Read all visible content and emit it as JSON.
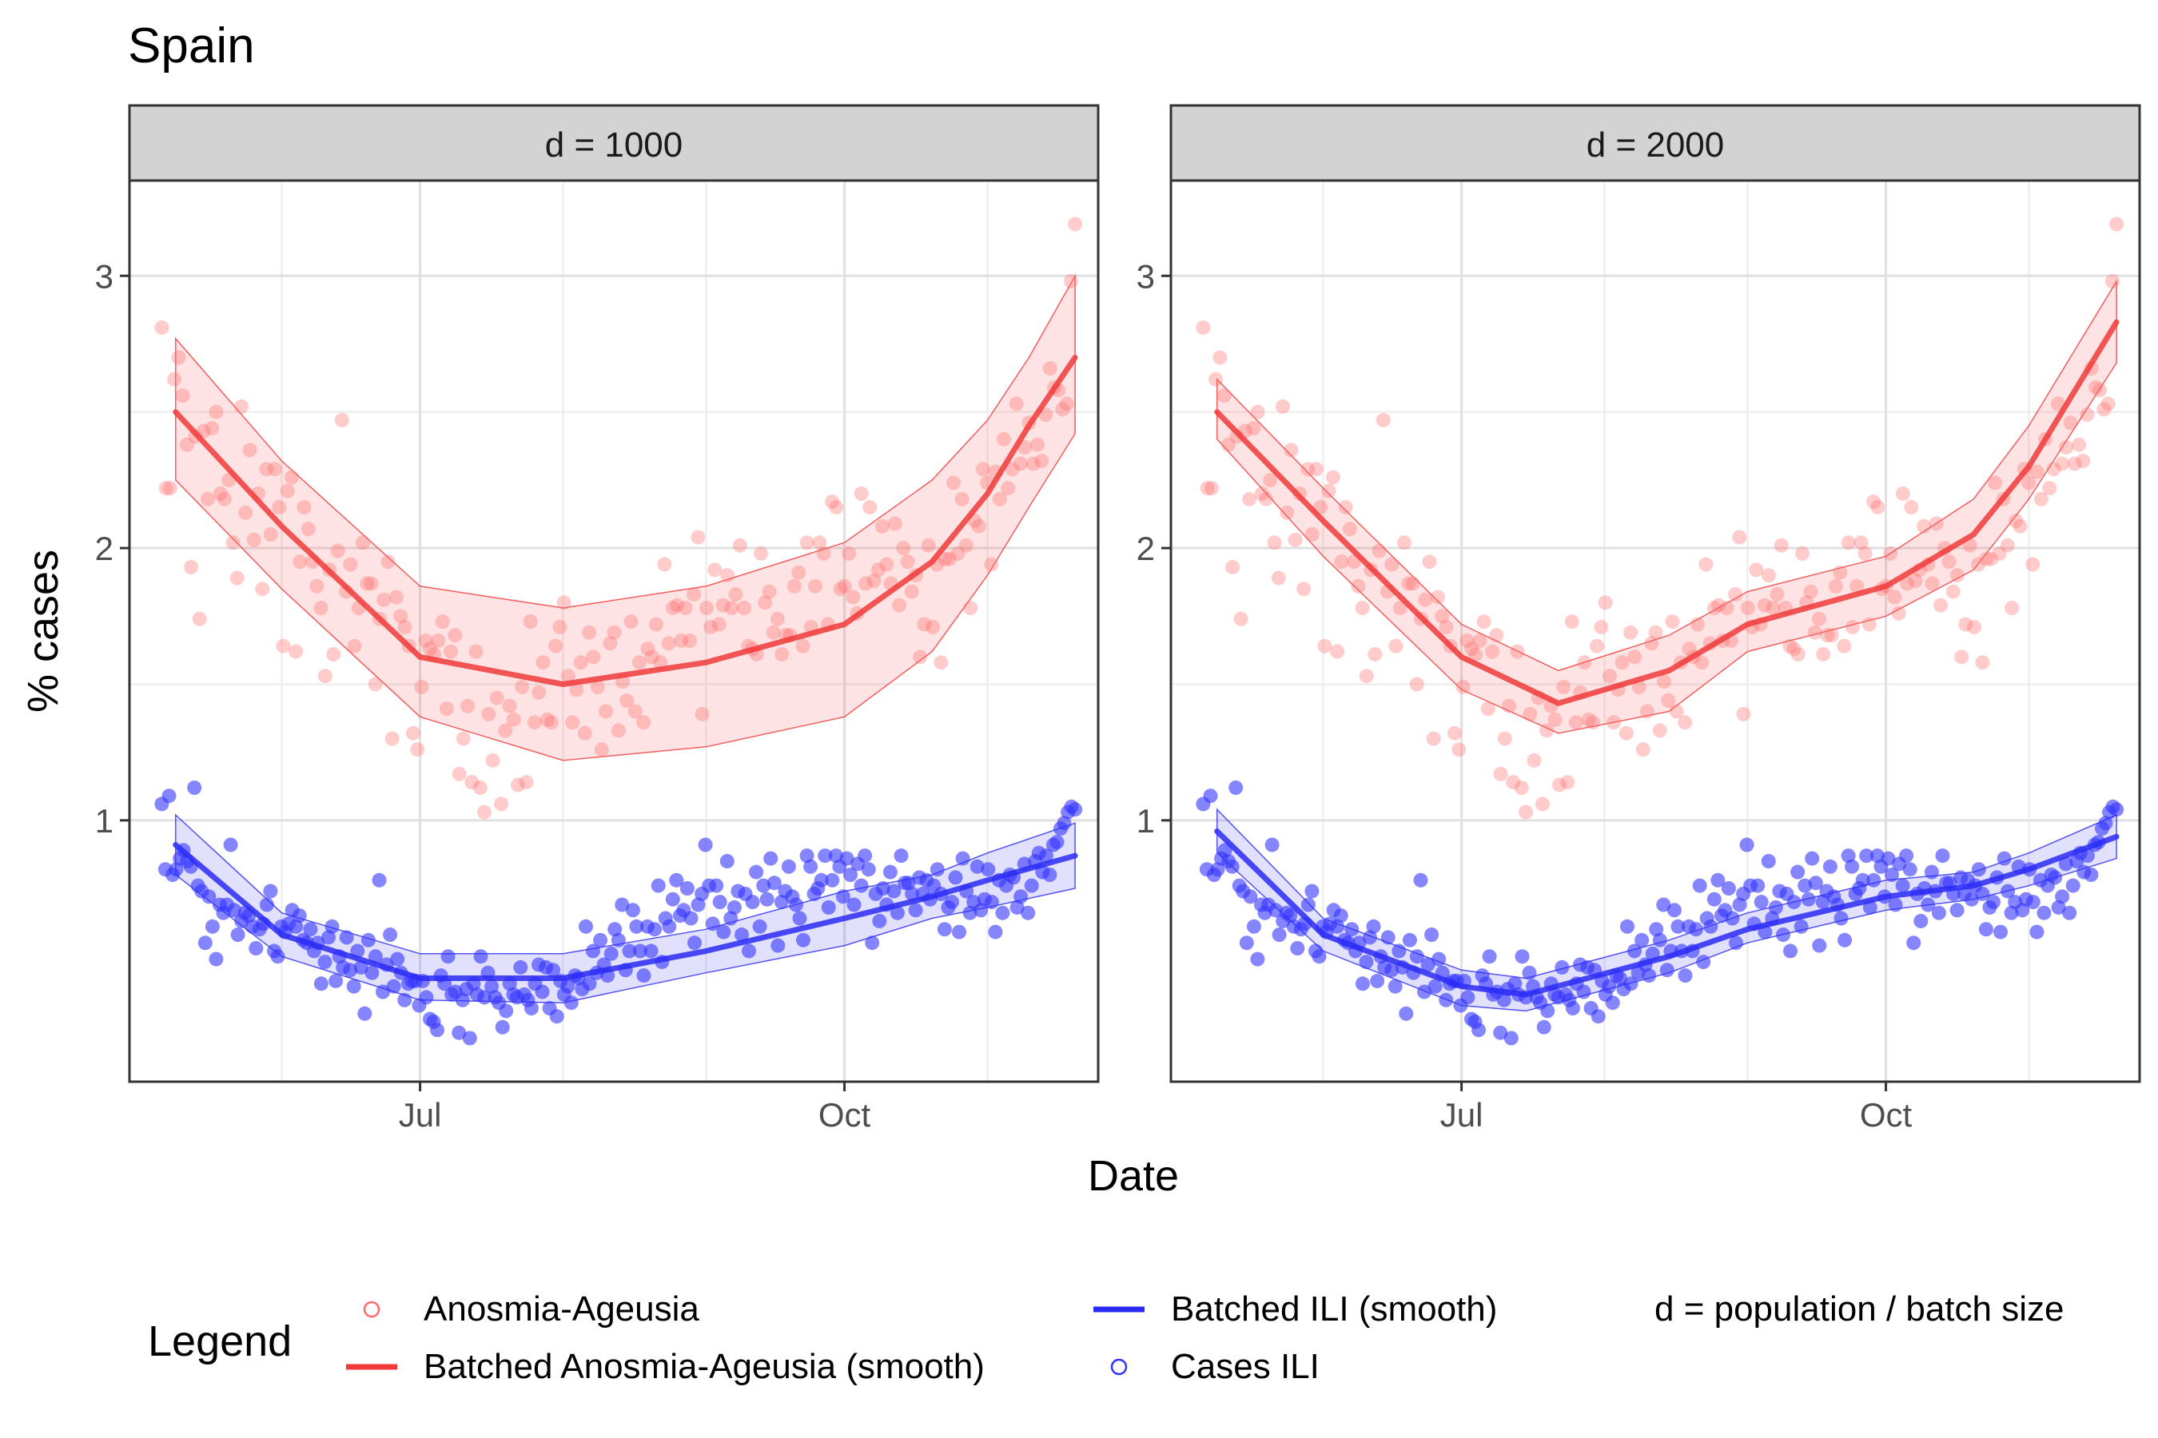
{
  "title": "Spain",
  "xlabel": "Date",
  "ylabel": "% cases",
  "legend": {
    "title": "Legend",
    "items": [
      {
        "label": "Anosmia-Ageusia",
        "kind": "point",
        "color": "#ff6b6b"
      },
      {
        "label": "Batched Anosmia-Ageusia (smooth)",
        "kind": "line",
        "color": "#f03a3a"
      },
      {
        "label": "Batched ILI (smooth)",
        "kind": "line",
        "color": "#2a2af5"
      },
      {
        "label": "Cases ILI",
        "kind": "point",
        "color": "#3333ff"
      }
    ],
    "note": "d = population / batch size"
  },
  "chart_data": {
    "type": "scatter",
    "x_type": "date",
    "x_range": [
      "2020-04-29",
      "2020-11-25"
    ],
    "x_ticks": [
      {
        "date": "2020-07-01",
        "label": "Jul"
      },
      {
        "date": "2020-10-01",
        "label": "Oct"
      }
    ],
    "x_minor_ticks": [
      "2020-06-01",
      "2020-08-01",
      "2020-09-01",
      "2020-11-01"
    ],
    "ylim": [
      0.04,
      3.35
    ],
    "y_ticks": [
      1,
      2,
      3
    ],
    "y_minor_ticks": [
      1.5,
      2.5
    ],
    "grid": true,
    "legend_position": "bottom",
    "colors": {
      "anosmia_points": "#ff6b6b",
      "anosmia_smooth": "#f03a3a",
      "ili_points": "#3333ff",
      "ili_smooth": "#2a2af5"
    },
    "observed": {
      "date_start": "2020-05-06",
      "date_end": "2020-11-20",
      "anosmia_ageusia": [
        2.81,
        2.22,
        2.22,
        2.62,
        2.7,
        2.56,
        2.38,
        1.93,
        2.41,
        1.74,
        2.43,
        2.18,
        2.44,
        2.5,
        2.2,
        2.18,
        2.25,
        2.02,
        1.89,
        2.52,
        2.13,
        2.36,
        2.03,
        2.2,
        1.85,
        2.29,
        2.05,
        2.29,
        2.15,
        1.64,
        2.21,
        2.26,
        1.62,
        1.95,
        2.15,
        2.07,
        1.95,
        1.86,
        1.78,
        1.53,
        1.92,
        1.61,
        1.99,
        2.47,
        1.84,
        1.94,
        1.64,
        1.78,
        2.02,
        1.87,
        1.87,
        1.5,
        1.74,
        1.81,
        1.95,
        1.3,
        1.82,
        1.75,
        1.71,
        1.64,
        1.32,
        1.26,
        1.49,
        1.66,
        1.63,
        1.61,
        1.66,
        1.73,
        1.41,
        1.62,
        1.68,
        1.17,
        1.3,
        1.42,
        1.14,
        1.62,
        1.12,
        1.03,
        1.39,
        1.22,
        1.45,
        1.06,
        1.33,
        1.42,
        1.37,
        1.13,
        1.49,
        1.14,
        1.73,
        1.36,
        1.47,
        1.58,
        1.37,
        1.36,
        1.64,
        1.71,
        1.8,
        1.53,
        1.36,
        1.48,
        1.58,
        1.32,
        1.69,
        1.6,
        1.49,
        1.26,
        1.4,
        1.65,
        1.69,
        1.33,
        1.51,
        1.44,
        1.73,
        1.4,
        1.58,
        1.36,
        1.63,
        1.6,
        1.72,
        1.58,
        1.94,
        1.65,
        1.78,
        1.79,
        1.66,
        1.78,
        1.66,
        1.83,
        2.04,
        1.39,
        1.78,
        1.71,
        1.92,
        1.72,
        1.79,
        1.9,
        1.78,
        1.83,
        2.01,
        1.78,
        1.64,
        1.63,
        1.61,
        1.98,
        1.8,
        1.84,
        1.69,
        1.74,
        1.61,
        1.68,
        1.68,
        1.86,
        1.91,
        1.64,
        2.02,
        1.71,
        1.86,
        2.02,
        1.98,
        1.72,
        2.17,
        2.15,
        1.85,
        1.86,
        1.98,
        1.82,
        1.76,
        2.2,
        1.87,
        2.15,
        1.88,
        1.92,
        2.08,
        1.94,
        1.87,
        2.09,
        1.79,
        2.0,
        1.95,
        1.84,
        1.9,
        1.6,
        1.72,
        2.01,
        1.71,
        1.94,
        1.58,
        1.96,
        1.96,
        2.24,
        1.98,
        2.18,
        2.01,
        1.78,
        2.1,
        2.08,
        2.29,
        2.24,
        1.94,
        2.28,
        2.18,
        2.4,
        2.22,
        2.29,
        2.53,
        2.31,
        2.37,
        2.46,
        2.31,
        2.38,
        2.32,
        2.49,
        2.66,
        2.59,
        2.58,
        2.51,
        2.53,
        2.98,
        3.19
      ],
      "cases_ili": [
        1.06,
        0.82,
        1.09,
        0.8,
        0.82,
        0.86,
        0.89,
        0.85,
        0.83,
        1.12,
        0.76,
        0.74,
        0.55,
        0.72,
        0.61,
        0.49,
        0.69,
        0.66,
        0.69,
        0.91,
        0.67,
        0.58,
        0.63,
        0.66,
        0.65,
        0.61,
        0.53,
        0.6,
        0.62,
        0.69,
        0.74,
        0.52,
        0.5,
        0.61,
        0.59,
        0.62,
        0.67,
        0.61,
        0.65,
        0.56,
        0.55,
        0.6,
        0.52,
        0.55,
        0.4,
        0.48,
        0.57,
        0.61,
        0.41,
        0.5,
        0.46,
        0.57,
        0.45,
        0.39,
        0.52,
        0.46,
        0.29,
        0.56,
        0.44,
        0.5,
        0.78,
        0.37,
        0.47,
        0.58,
        0.39,
        0.49,
        0.44,
        0.34,
        0.4,
        0.41,
        0.41,
        0.32,
        0.41,
        0.35,
        0.27,
        0.26,
        0.23,
        0.43,
        0.4,
        0.5,
        0.36,
        0.37,
        0.22,
        0.34,
        0.38,
        0.2,
        0.4,
        0.36,
        0.5,
        0.35,
        0.44,
        0.39,
        0.35,
        0.33,
        0.24,
        0.3,
        0.4,
        0.36,
        0.35,
        0.46,
        0.36,
        0.34,
        0.31,
        0.4,
        0.47,
        0.37,
        0.46,
        0.31,
        0.45,
        0.28,
        0.41,
        0.36,
        0.39,
        0.33,
        0.43,
        0.42,
        0.38,
        0.61,
        0.4,
        0.52,
        0.44,
        0.56,
        0.47,
        0.43,
        0.51,
        0.6,
        0.56,
        0.69,
        0.45,
        0.52,
        0.67,
        0.61,
        0.52,
        0.43,
        0.61,
        0.52,
        0.6,
        0.76,
        0.48,
        0.64,
        0.61,
        0.71,
        0.78,
        0.65,
        0.67,
        0.75,
        0.64,
        0.55,
        0.69,
        0.73,
        0.91,
        0.76,
        0.62,
        0.76,
        0.7,
        0.59,
        0.85,
        0.64,
        0.68,
        0.74,
        0.58,
        0.73,
        0.52,
        0.7,
        0.81,
        0.61,
        0.76,
        0.71,
        0.86,
        0.77,
        0.54,
        0.7,
        0.74,
        0.83,
        0.72,
        0.69,
        0.64,
        0.56,
        0.87,
        0.83,
        0.73,
        0.75,
        0.78,
        0.87,
        0.68,
        0.78,
        0.87,
        0.83,
        0.72,
        0.86,
        0.8,
        0.69,
        0.84,
        0.76,
        0.87,
        0.82,
        0.55,
        0.73,
        0.63,
        0.75,
        0.69,
        0.81,
        0.74,
        0.66,
        0.87,
        0.77,
        0.77,
        0.73,
        0.67,
        0.79,
        0.73,
        0.78,
        0.71,
        0.76,
        0.82,
        0.73,
        0.6,
        0.68,
        0.7,
        0.79,
        0.59,
        0.86,
        0.74,
        0.66,
        0.7,
        0.83,
        0.67,
        0.71,
        0.82,
        0.7,
        0.59,
        0.78,
        0.66,
        0.76,
        0.8,
        0.79,
        0.68,
        0.72,
        0.84,
        0.66,
        0.76,
        0.85,
        0.88,
        0.81,
        0.87,
        0.8,
        0.91,
        0.92,
        0.97,
        0.99,
        1.03,
        1.05,
        1.04
      ]
    },
    "panels": [
      {
        "strip": "d = 1000",
        "anosmia_smooth": {
          "dates": [
            "2020-05-09",
            "2020-06-01",
            "2020-07-01",
            "2020-08-01",
            "2020-09-01",
            "2020-10-01",
            "2020-10-20",
            "2020-11-01",
            "2020-11-10",
            "2020-11-20"
          ],
          "fit": [
            2.5,
            2.08,
            1.6,
            1.5,
            1.58,
            1.72,
            1.95,
            2.2,
            2.45,
            2.7
          ],
          "lower": [
            2.25,
            1.85,
            1.38,
            1.22,
            1.27,
            1.38,
            1.62,
            1.9,
            2.15,
            2.42
          ],
          "upper": [
            2.77,
            2.32,
            1.86,
            1.78,
            1.86,
            2.02,
            2.25,
            2.47,
            2.7,
            3.0
          ]
        },
        "ili_smooth": {
          "dates": [
            "2020-05-09",
            "2020-06-01",
            "2020-07-01",
            "2020-08-01",
            "2020-09-01",
            "2020-10-01",
            "2020-10-20",
            "2020-11-01",
            "2020-11-20"
          ],
          "fit": [
            0.91,
            0.58,
            0.42,
            0.42,
            0.52,
            0.64,
            0.72,
            0.78,
            0.87
          ],
          "lower": [
            0.8,
            0.5,
            0.34,
            0.33,
            0.44,
            0.54,
            0.64,
            0.68,
            0.75
          ],
          "upper": [
            1.02,
            0.66,
            0.51,
            0.51,
            0.6,
            0.74,
            0.8,
            0.88,
            0.99
          ]
        }
      },
      {
        "strip": "d = 2000",
        "anosmia_smooth": {
          "dates": [
            "2020-05-09",
            "2020-06-01",
            "2020-07-01",
            "2020-07-22",
            "2020-08-15",
            "2020-09-01",
            "2020-10-01",
            "2020-10-20",
            "2020-11-01",
            "2020-11-20"
          ],
          "fit": [
            2.5,
            2.1,
            1.6,
            1.43,
            1.55,
            1.72,
            1.86,
            2.05,
            2.3,
            2.83
          ],
          "lower": [
            2.4,
            1.97,
            1.48,
            1.32,
            1.4,
            1.62,
            1.75,
            1.92,
            2.18,
            2.68
          ],
          "upper": [
            2.62,
            2.22,
            1.72,
            1.55,
            1.68,
            1.84,
            1.97,
            2.18,
            2.45,
            2.98
          ]
        },
        "ili_smooth": {
          "dates": [
            "2020-05-09",
            "2020-06-01",
            "2020-07-01",
            "2020-07-15",
            "2020-08-15",
            "2020-09-01",
            "2020-10-01",
            "2020-10-20",
            "2020-11-01",
            "2020-11-20"
          ],
          "fit": [
            0.96,
            0.58,
            0.39,
            0.36,
            0.5,
            0.6,
            0.72,
            0.76,
            0.82,
            0.94
          ],
          "lower": [
            0.88,
            0.52,
            0.32,
            0.3,
            0.44,
            0.55,
            0.67,
            0.71,
            0.76,
            0.86
          ],
          "upper": [
            1.04,
            0.64,
            0.45,
            0.42,
            0.56,
            0.66,
            0.78,
            0.81,
            0.88,
            1.02
          ]
        }
      }
    ]
  }
}
